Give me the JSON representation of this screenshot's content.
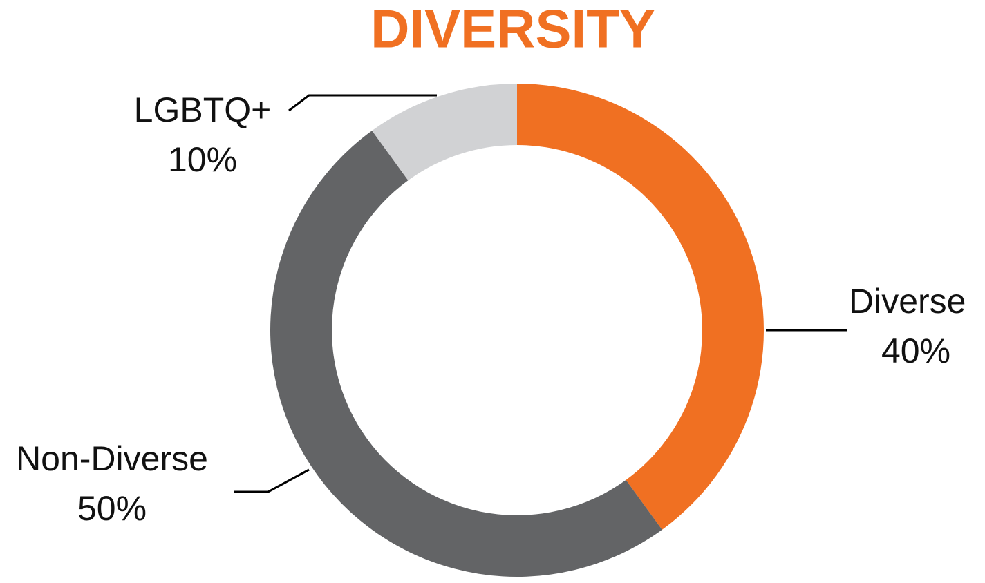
{
  "chart_data": {
    "type": "donut",
    "title": "DIVERSITY",
    "categories": [
      "Diverse",
      "Non-Diverse",
      "LGBTQ+"
    ],
    "values": [
      40,
      50,
      10
    ],
    "value_labels": [
      "40%",
      "50%",
      "10%"
    ],
    "colors": [
      "#f07022",
      "#636466",
      "#d1d2d4"
    ]
  }
}
